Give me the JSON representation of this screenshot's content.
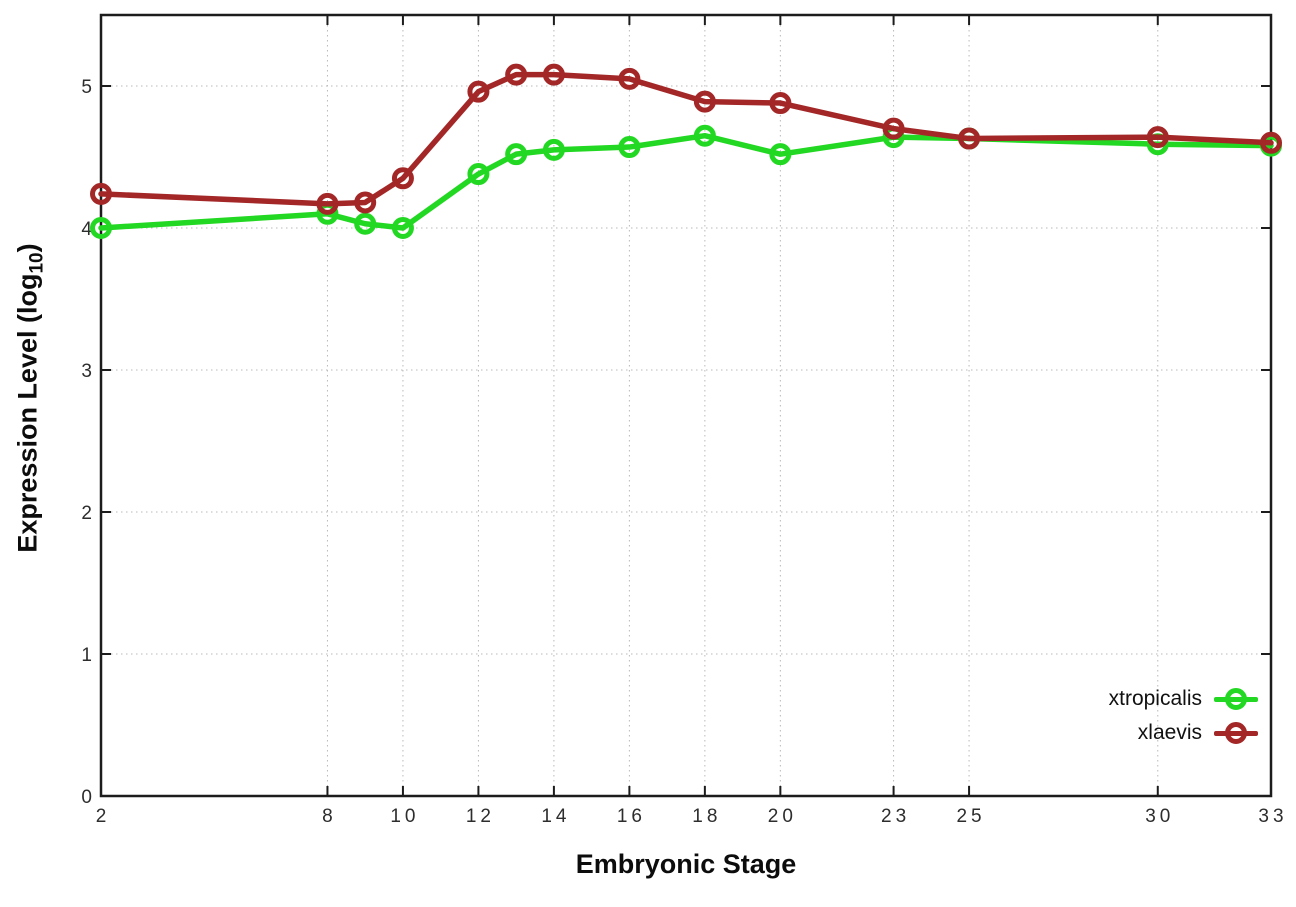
{
  "figure": {
    "background": "#ffffff",
    "frame_color": "#1c1c1c",
    "grid_color": "#b9b9b9"
  },
  "labels": {
    "xlabel": "Embryonic Stage",
    "ylabel_prefix": "Expression Level (log",
    "ylabel_subscript": "10",
    "ylabel_suffix": ")"
  },
  "chart_data": {
    "type": "line",
    "title": "",
    "xlabel": "Embryonic Stage",
    "ylabel": "Expression Level (log10)",
    "x_scale": "linear",
    "xlim": [
      2,
      33
    ],
    "ylim": [
      0,
      5.5
    ],
    "grid": true,
    "legend_position": "inside-bottom-right",
    "x_ticks": [
      2,
      8,
      10,
      12,
      14,
      16,
      18,
      20,
      23,
      25,
      30,
      33
    ],
    "y_ticks": [
      0,
      1,
      2,
      3,
      4,
      5
    ],
    "x": [
      2,
      8,
      9,
      10,
      12,
      13,
      14,
      16,
      18,
      20,
      23,
      25,
      30,
      33
    ],
    "series": [
      {
        "name": "xtropicalis",
        "color": "#22d822",
        "values": [
          4.0,
          4.1,
          4.03,
          4.0,
          4.38,
          4.52,
          4.55,
          4.57,
          4.65,
          4.52,
          4.64,
          4.63,
          4.59,
          4.58
        ]
      },
      {
        "name": "xlaevis",
        "color": "#a32727",
        "values": [
          4.24,
          4.17,
          4.18,
          4.35,
          4.96,
          5.08,
          5.08,
          5.05,
          4.89,
          4.88,
          4.7,
          4.63,
          4.64,
          4.6
        ]
      }
    ]
  }
}
